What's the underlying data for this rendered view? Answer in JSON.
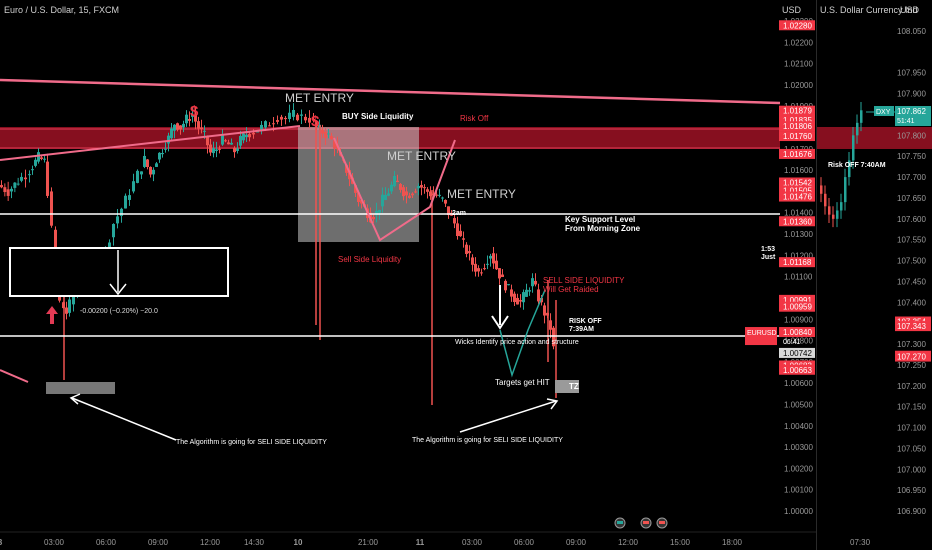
{
  "main_chart": {
    "symbol_title": "Euro / U.S. Dollar, 15, FXCM",
    "currency": "USD",
    "price_ticks": [
      "1.02300",
      "1.02200",
      "1.02100",
      "1.02000",
      "1.01900",
      "1.01800",
      "1.01700",
      "1.01600",
      "1.01500",
      "1.01400",
      "1.01300",
      "1.01200",
      "1.01100",
      "1.01000",
      "1.00900",
      "1.00800",
      "1.00700",
      "1.00600",
      "1.00500",
      "1.00400",
      "1.00300",
      "1.00200",
      "1.00100",
      "1.00000"
    ],
    "price_tick_values": [
      1.023,
      1.022,
      1.021,
      1.02,
      1.019,
      1.018,
      1.017,
      1.016,
      1.015,
      1.014,
      1.013,
      1.012,
      1.011,
      1.01,
      1.009,
      1.008,
      1.007,
      1.006,
      1.005,
      1.004,
      1.003,
      1.002,
      1.001,
      1.0
    ],
    "price_tags": [
      {
        "text": "1.02280",
        "value": 1.0228,
        "color": "#f23645"
      },
      {
        "text": "1.01879",
        "value": 1.01879,
        "color": "#f23645"
      },
      {
        "text": "1.01835",
        "value": 1.01835,
        "color": "#f23645"
      },
      {
        "text": "1.01806",
        "value": 1.01806,
        "color": "#f23645"
      },
      {
        "text": "1.01760",
        "value": 1.0176,
        "color": "#f23645"
      },
      {
        "text": "1.01676",
        "value": 1.01676,
        "color": "#f23645"
      },
      {
        "text": "1.01542",
        "value": 1.01542,
        "color": "#f23645"
      },
      {
        "text": "1.01505",
        "value": 1.01505,
        "color": "#f23645"
      },
      {
        "text": "1.01476",
        "value": 1.01476,
        "color": "#f23645"
      },
      {
        "text": "1.01360",
        "value": 1.0136,
        "color": "#f23645"
      },
      {
        "text": "1.01168",
        "value": 1.01168,
        "color": "#f23645"
      },
      {
        "text": "1.00991",
        "value": 1.00991,
        "color": "#f23645"
      },
      {
        "text": "1.00959",
        "value": 1.00959,
        "color": "#f23645"
      },
      {
        "text": "1.00840",
        "value": 1.0084,
        "color": "#f23645"
      },
      {
        "text": "1.00742",
        "value": 1.00742,
        "color": "#d9d9d9"
      },
      {
        "text": "1.00683",
        "value": 1.00683,
        "color": "#f23645"
      },
      {
        "text": "1.00663",
        "value": 1.00663,
        "color": "#f23645"
      }
    ],
    "eurusd_tag": {
      "label": "EURUSD",
      "price": "1.00840",
      "countdown": "06:41"
    },
    "time_ticks": [
      {
        "label": "8",
        "slot": 0
      },
      {
        "label": "03:00",
        "slot": 54
      },
      {
        "label": "06:00",
        "slot": 106
      },
      {
        "label": "09:00",
        "slot": 158
      },
      {
        "label": "12:00",
        "slot": 210
      },
      {
        "label": "14:30",
        "slot": 254
      },
      {
        "label": "10",
        "slot": 298
      },
      {
        "label": "21:00",
        "slot": 368
      },
      {
        "label": "11",
        "slot": 420
      },
      {
        "label": "03:00",
        "slot": 472
      },
      {
        "label": "06:00",
        "slot": 524
      },
      {
        "label": "09:00",
        "slot": 576
      },
      {
        "label": "12:00",
        "slot": 628
      },
      {
        "label": "15:00",
        "slot": 680
      },
      {
        "label": "18:00",
        "slot": 732
      }
    ],
    "annotations": {
      "met_entry_1": "MET ENTRY",
      "met_entry_2": "MET ENTRY",
      "met_entry_3": "MET ENTRY",
      "buy_side": "BUY Side Liquidity",
      "risk_off_1": "Risk Off",
      "sell_side_liq": "Sell Side Liquidity",
      "key_support_1": "Key Support Level",
      "key_support_2": "From Morning Zone",
      "two_am": "2am",
      "sell_side_raid_1": "SELL SIDE LIQUIDITY",
      "sell_side_raid_2": "Will Get Raided",
      "risk_off_2_a": "RISK OFF",
      "risk_off_2_b": "7:39AM",
      "wicks": "Wicks Identify price action and structure",
      "targets": "Targets get HIT",
      "tz": "TZ",
      "algo_1": "The Algorithm is going for SELI SIDE LIQUIDITY",
      "algo_2": "The Algorithm is going for SELI SIDE LIQUIDITY",
      "measure": "-0.00200 (−0.20%) −20.0",
      "mid_cut_1": "1:53",
      "mid_cut_2": "Just",
      "dollar_1": "$",
      "dollar_2": "$"
    }
  },
  "side_chart": {
    "title": "U.S. Dollar Currency Ind",
    "currency": "USD",
    "price_ticks": [
      "108.050",
      "107.950",
      "107.900",
      "107.850",
      "107.800",
      "107.750",
      "107.700",
      "107.650",
      "107.600",
      "107.550",
      "107.500",
      "107.450",
      "107.400",
      "107.350",
      "107.300",
      "107.250",
      "107.200",
      "107.150",
      "107.100",
      "107.050",
      "107.000",
      "106.950",
      "106.900"
    ],
    "price_tick_values": [
      108.05,
      107.95,
      107.9,
      107.85,
      107.8,
      107.75,
      107.7,
      107.65,
      107.6,
      107.55,
      107.5,
      107.45,
      107.4,
      107.35,
      107.3,
      107.25,
      107.2,
      107.15,
      107.1,
      107.05,
      107.0,
      106.95,
      106.9
    ],
    "price_tags": [
      {
        "text": "107.354",
        "value": 107.354,
        "color": "#f23645"
      },
      {
        "text": "107.343",
        "value": 107.343,
        "color": "#f23645"
      },
      {
        "text": "107.272",
        "value": 107.272,
        "color": "#f23645"
      },
      {
        "text": "107.270",
        "value": 107.27,
        "color": "#f23645"
      }
    ],
    "dxy_tag": {
      "label": "DXY",
      "price": "107.862",
      "countdown": "51:41"
    },
    "risk_off_label": "Risk OFF 7:40AM",
    "time_label": "07:30"
  },
  "colors": {
    "up": "#26a69a",
    "down": "#ef5350",
    "annot_pink": "#f06b8a",
    "zone": "#b3142a",
    "bg": "#000000"
  },
  "chart_data": [
    {
      "type": "candlestick",
      "title": "Euro / U.S. Dollar, 15, FXCM",
      "ylabel": "USD",
      "ylim": [
        0.9995,
        1.0235
      ],
      "x": [
        "8",
        "03:00",
        "06:00",
        "09:00",
        "12:00",
        "14:30",
        "10",
        "21:00",
        "11",
        "03:00",
        "06:00",
        "09:00",
        "12:00",
        "15:00",
        "18:00"
      ],
      "horizontal_levels": [
        1.01879,
        1.01835,
        1.01806,
        1.0176,
        1.01476,
        1.00959,
        1.0084
      ],
      "path": [
        [
          0,
          1.0153
        ],
        [
          10,
          1.015
        ],
        [
          20,
          1.0155
        ],
        [
          28,
          1.0158
        ],
        [
          34,
          1.0162
        ],
        [
          40,
          1.0166
        ],
        [
          46,
          1.0164
        ],
        [
          50,
          1.015
        ],
        [
          54,
          1.0132
        ],
        [
          58,
          1.0118
        ],
        [
          62,
          1.0098
        ],
        [
          68,
          1.0093
        ],
        [
          76,
          1.0101
        ],
        [
          84,
          1.0108
        ],
        [
          92,
          1.0113
        ],
        [
          100,
          1.011
        ],
        [
          108,
          1.0122
        ],
        [
          116,
          1.0135
        ],
        [
          124,
          1.0142
        ],
        [
          132,
          1.015
        ],
        [
          140,
          1.0158
        ],
        [
          146,
          1.0165
        ],
        [
          152,
          1.0158
        ],
        [
          158,
          1.0165
        ],
        [
          164,
          1.017
        ],
        [
          170,
          1.0175
        ],
        [
          176,
          1.0182
        ],
        [
          182,
          1.018
        ],
        [
          188,
          1.0184
        ],
        [
          194,
          1.0186
        ],
        [
          200,
          1.018
        ],
        [
          206,
          1.0176
        ],
        [
          212,
          1.0168
        ],
        [
          218,
          1.017
        ],
        [
          224,
          1.0174
        ],
        [
          230,
          1.0172
        ],
        [
          236,
          1.0169
        ],
        [
          242,
          1.0174
        ],
        [
          248,
          1.0177
        ],
        [
          256,
          1.0178
        ],
        [
          264,
          1.018
        ],
        [
          272,
          1.0182
        ],
        [
          280,
          1.0185
        ],
        [
          288,
          1.0184
        ],
        [
          296,
          1.0186
        ],
        [
          304,
          1.0185
        ],
        [
          312,
          1.0184
        ],
        [
          318,
          1.018
        ],
        [
          324,
          1.0178
        ],
        [
          330,
          1.0176
        ],
        [
          336,
          1.0172
        ],
        [
          342,
          1.0165
        ],
        [
          348,
          1.016
        ],
        [
          354,
          1.0153
        ],
        [
          360,
          1.0146
        ],
        [
          366,
          1.0142
        ],
        [
          372,
          1.0138
        ],
        [
          378,
          1.014
        ],
        [
          384,
          1.0146
        ],
        [
          390,
          1.015
        ],
        [
          396,
          1.0155
        ],
        [
          402,
          1.0152
        ],
        [
          408,
          1.0148
        ],
        [
          414,
          1.015
        ],
        [
          420,
          1.0153
        ],
        [
          426,
          1.0151
        ],
        [
          432,
          1.0149
        ],
        [
          438,
          1.0148
        ],
        [
          444,
          1.0146
        ],
        [
          450,
          1.014
        ],
        [
          456,
          1.0135
        ],
        [
          462,
          1.0128
        ],
        [
          468,
          1.0122
        ],
        [
          474,
          1.0116
        ],
        [
          480,
          1.0112
        ],
        [
          486,
          1.0116
        ],
        [
          492,
          1.0121
        ],
        [
          498,
          1.0114
        ],
        [
          504,
          1.0108
        ],
        [
          510,
          1.0104
        ],
        [
          516,
          1.01
        ],
        [
          522,
          1.0098
        ],
        [
          528,
          1.0103
        ],
        [
          534,
          1.0108
        ],
        [
          540,
          1.01
        ],
        [
          546,
          1.0093
        ],
        [
          552,
          1.0086
        ],
        [
          556,
          1.0076
        ]
      ]
    },
    {
      "type": "candlestick",
      "title": "U.S. Dollar Currency Ind",
      "ylabel": "USD",
      "ylim": [
        106.86,
        108.1
      ],
      "x": [
        "07:30"
      ],
      "path": [
        [
          0,
          107.68
        ],
        [
          4,
          107.66
        ],
        [
          8,
          107.63
        ],
        [
          12,
          107.61
        ],
        [
          16,
          107.6
        ],
        [
          20,
          107.62
        ],
        [
          24,
          107.64
        ],
        [
          28,
          107.7
        ],
        [
          32,
          107.74
        ],
        [
          36,
          107.8
        ],
        [
          40,
          107.83
        ],
        [
          44,
          107.86
        ]
      ]
    }
  ]
}
